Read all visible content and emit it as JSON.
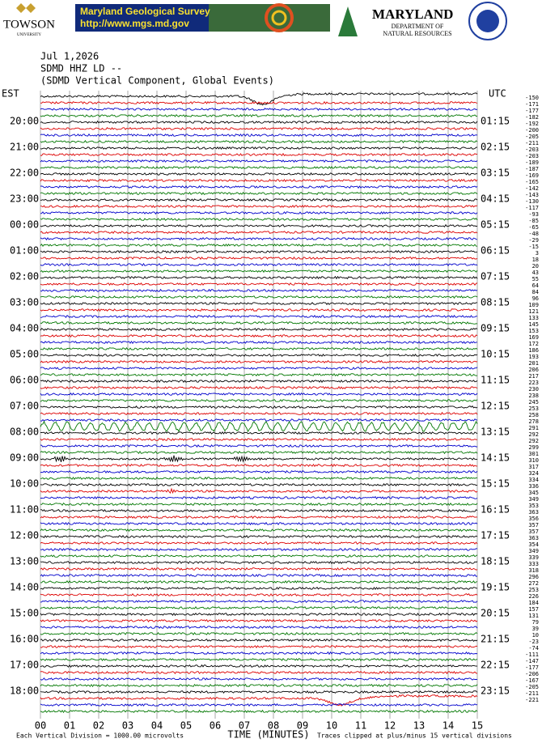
{
  "header": {
    "towson": "TOWSON",
    "towson_sub": "UNIVERSITY",
    "mgs_title": "Maryland Geological Survey",
    "mgs_url": "http://www.mgs.md.gov",
    "dnr_title": "MARYLAND",
    "dnr_sub1": "DEPARTMENT OF",
    "dnr_sub2": "NATURAL RESOURCES"
  },
  "chart_data": {
    "type": "helicorder",
    "title_lines": [
      "Jul 1,2026",
      "SDMD HHZ LD --",
      "(SDMD Vertical Component, Global Events)"
    ],
    "left_axis_label": "EST",
    "right_axis_label": "UTC",
    "left_times": [
      "20:00",
      "21:00",
      "22:00",
      "23:00",
      "00:00",
      "01:00",
      "02:00",
      "03:00",
      "04:00",
      "05:00",
      "06:00",
      "07:00",
      "08:00",
      "09:00",
      "10:00",
      "11:00",
      "12:00",
      "13:00",
      "14:00",
      "15:00",
      "16:00",
      "17:00",
      "18:00"
    ],
    "right_times": [
      "01:15",
      "02:15",
      "03:15",
      "04:15",
      "05:15",
      "06:15",
      "07:15",
      "08:15",
      "09:15",
      "10:15",
      "11:15",
      "12:15",
      "13:15",
      "14:15",
      "15:15",
      "16:15",
      "17:15",
      "18:15",
      "19:15",
      "20:15",
      "21:15",
      "22:15",
      "23:15"
    ],
    "offsets": [
      -150,
      -171,
      -177,
      -182,
      -192,
      -200,
      -205,
      -211,
      -203,
      -203,
      -189,
      -187,
      -169,
      -165,
      -142,
      -143,
      -130,
      -117,
      -93,
      -85,
      -65,
      -48,
      -29,
      -15,
      3,
      18,
      20,
      43,
      55,
      64,
      84,
      96,
      109,
      121,
      133,
      145,
      153,
      169,
      172,
      186,
      193,
      201,
      206,
      217,
      223,
      230,
      238,
      245,
      253,
      258,
      278,
      291,
      292,
      292,
      299,
      301,
      310,
      317,
      324,
      334,
      336,
      345,
      349,
      353,
      363,
      356,
      357,
      357,
      363,
      354,
      349,
      339,
      333,
      318,
      296,
      272,
      253,
      226,
      184,
      157,
      131,
      79,
      39,
      10,
      -23,
      -74,
      -111,
      -147,
      -177,
      -206,
      -167,
      -205,
      -211,
      -221
    ],
    "trace_colors": [
      "#000000",
      "#dd0000",
      "#0000cc",
      "#007700"
    ],
    "xlim": [
      0,
      15
    ],
    "xticks": [
      {
        "value": 0,
        "label": "00"
      },
      {
        "value": 1,
        "label": "01"
      },
      {
        "value": 2,
        "label": "02"
      },
      {
        "value": 3,
        "label": "03"
      },
      {
        "value": 4,
        "label": "04"
      },
      {
        "value": 5,
        "label": "05"
      },
      {
        "value": 6,
        "label": "06"
      },
      {
        "value": 7,
        "label": "07"
      },
      {
        "value": 8,
        "label": "08"
      },
      {
        "value": 9,
        "label": "09"
      },
      10,
      11,
      12,
      13,
      14,
      15
    ],
    "xlabel": "TIME (MINUTES)",
    "footer_left": "Each Vertical Division = 1000.00 microvolts",
    "footer_right": "Traces clipped at plus/minus 15 vertical divisions",
    "grid": true
  }
}
